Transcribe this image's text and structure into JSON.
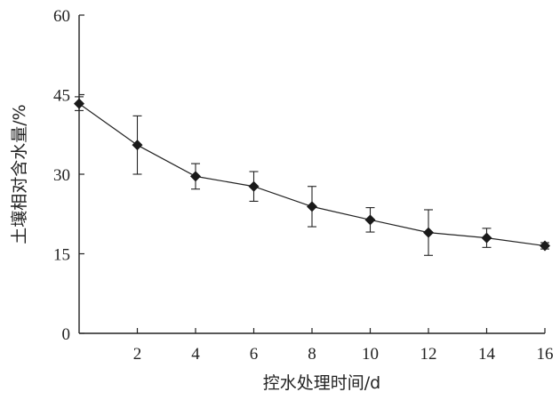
{
  "chart_data": {
    "type": "line",
    "xlabel": "控水处理时间/d",
    "ylabel": "土壤相对含水量/%",
    "xlim": [
      0,
      16
    ],
    "ylim": [
      0,
      60
    ],
    "x_ticks": [
      2,
      4,
      6,
      8,
      10,
      12,
      14,
      16
    ],
    "y_ticks": [
      0,
      15,
      30,
      45,
      60
    ],
    "grid": false,
    "legend": "none",
    "series": [
      {
        "x": [
          0,
          2,
          4,
          6,
          8,
          10,
          12,
          14,
          16
        ],
        "y": [
          43.3,
          35.5,
          29.6,
          27.7,
          23.9,
          21.4,
          19.0,
          18.0,
          16.5
        ],
        "error": [
          1.3,
          5.5,
          2.4,
          2.8,
          3.8,
          2.3,
          4.3,
          1.8,
          0.6
        ],
        "marker": "diamond",
        "color": "#1a1a1a"
      }
    ]
  }
}
